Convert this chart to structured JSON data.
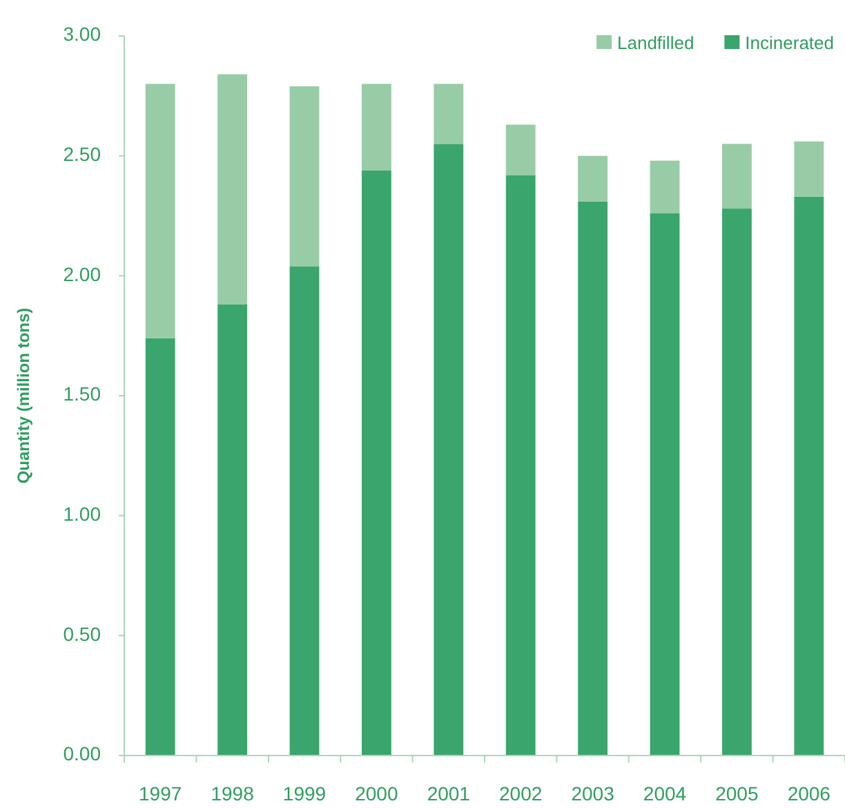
{
  "chart_data": {
    "type": "bar",
    "stacked": true,
    "ylabel": "Quantity (million tons)",
    "categories": [
      "1997",
      "1998",
      "1999",
      "2000",
      "2001",
      "2002",
      "2003",
      "2004",
      "2005",
      "2006"
    ],
    "series": [
      {
        "name": "Incinerated",
        "color": "#3aa56c",
        "values": [
          1.74,
          1.88,
          2.04,
          2.44,
          2.55,
          2.42,
          2.31,
          2.26,
          2.28,
          2.33
        ]
      },
      {
        "name": "Landfilled",
        "color": "#97cca6",
        "values": [
          1.06,
          0.96,
          0.75,
          0.36,
          0.25,
          0.21,
          0.19,
          0.22,
          0.27,
          0.23
        ]
      }
    ],
    "ylim": [
      0,
      3
    ],
    "yticks": [
      {
        "value": 0,
        "label": "0.00"
      },
      {
        "value": 0.5,
        "label": "0.50"
      },
      {
        "value": 1,
        "label": "1.00"
      },
      {
        "value": 1.5,
        "label": "1.50"
      },
      {
        "value": 2,
        "label": "2.00"
      },
      {
        "value": 2.5,
        "label": "2.50"
      },
      {
        "value": 3,
        "label": "3.00"
      }
    ],
    "legend": "top right"
  }
}
